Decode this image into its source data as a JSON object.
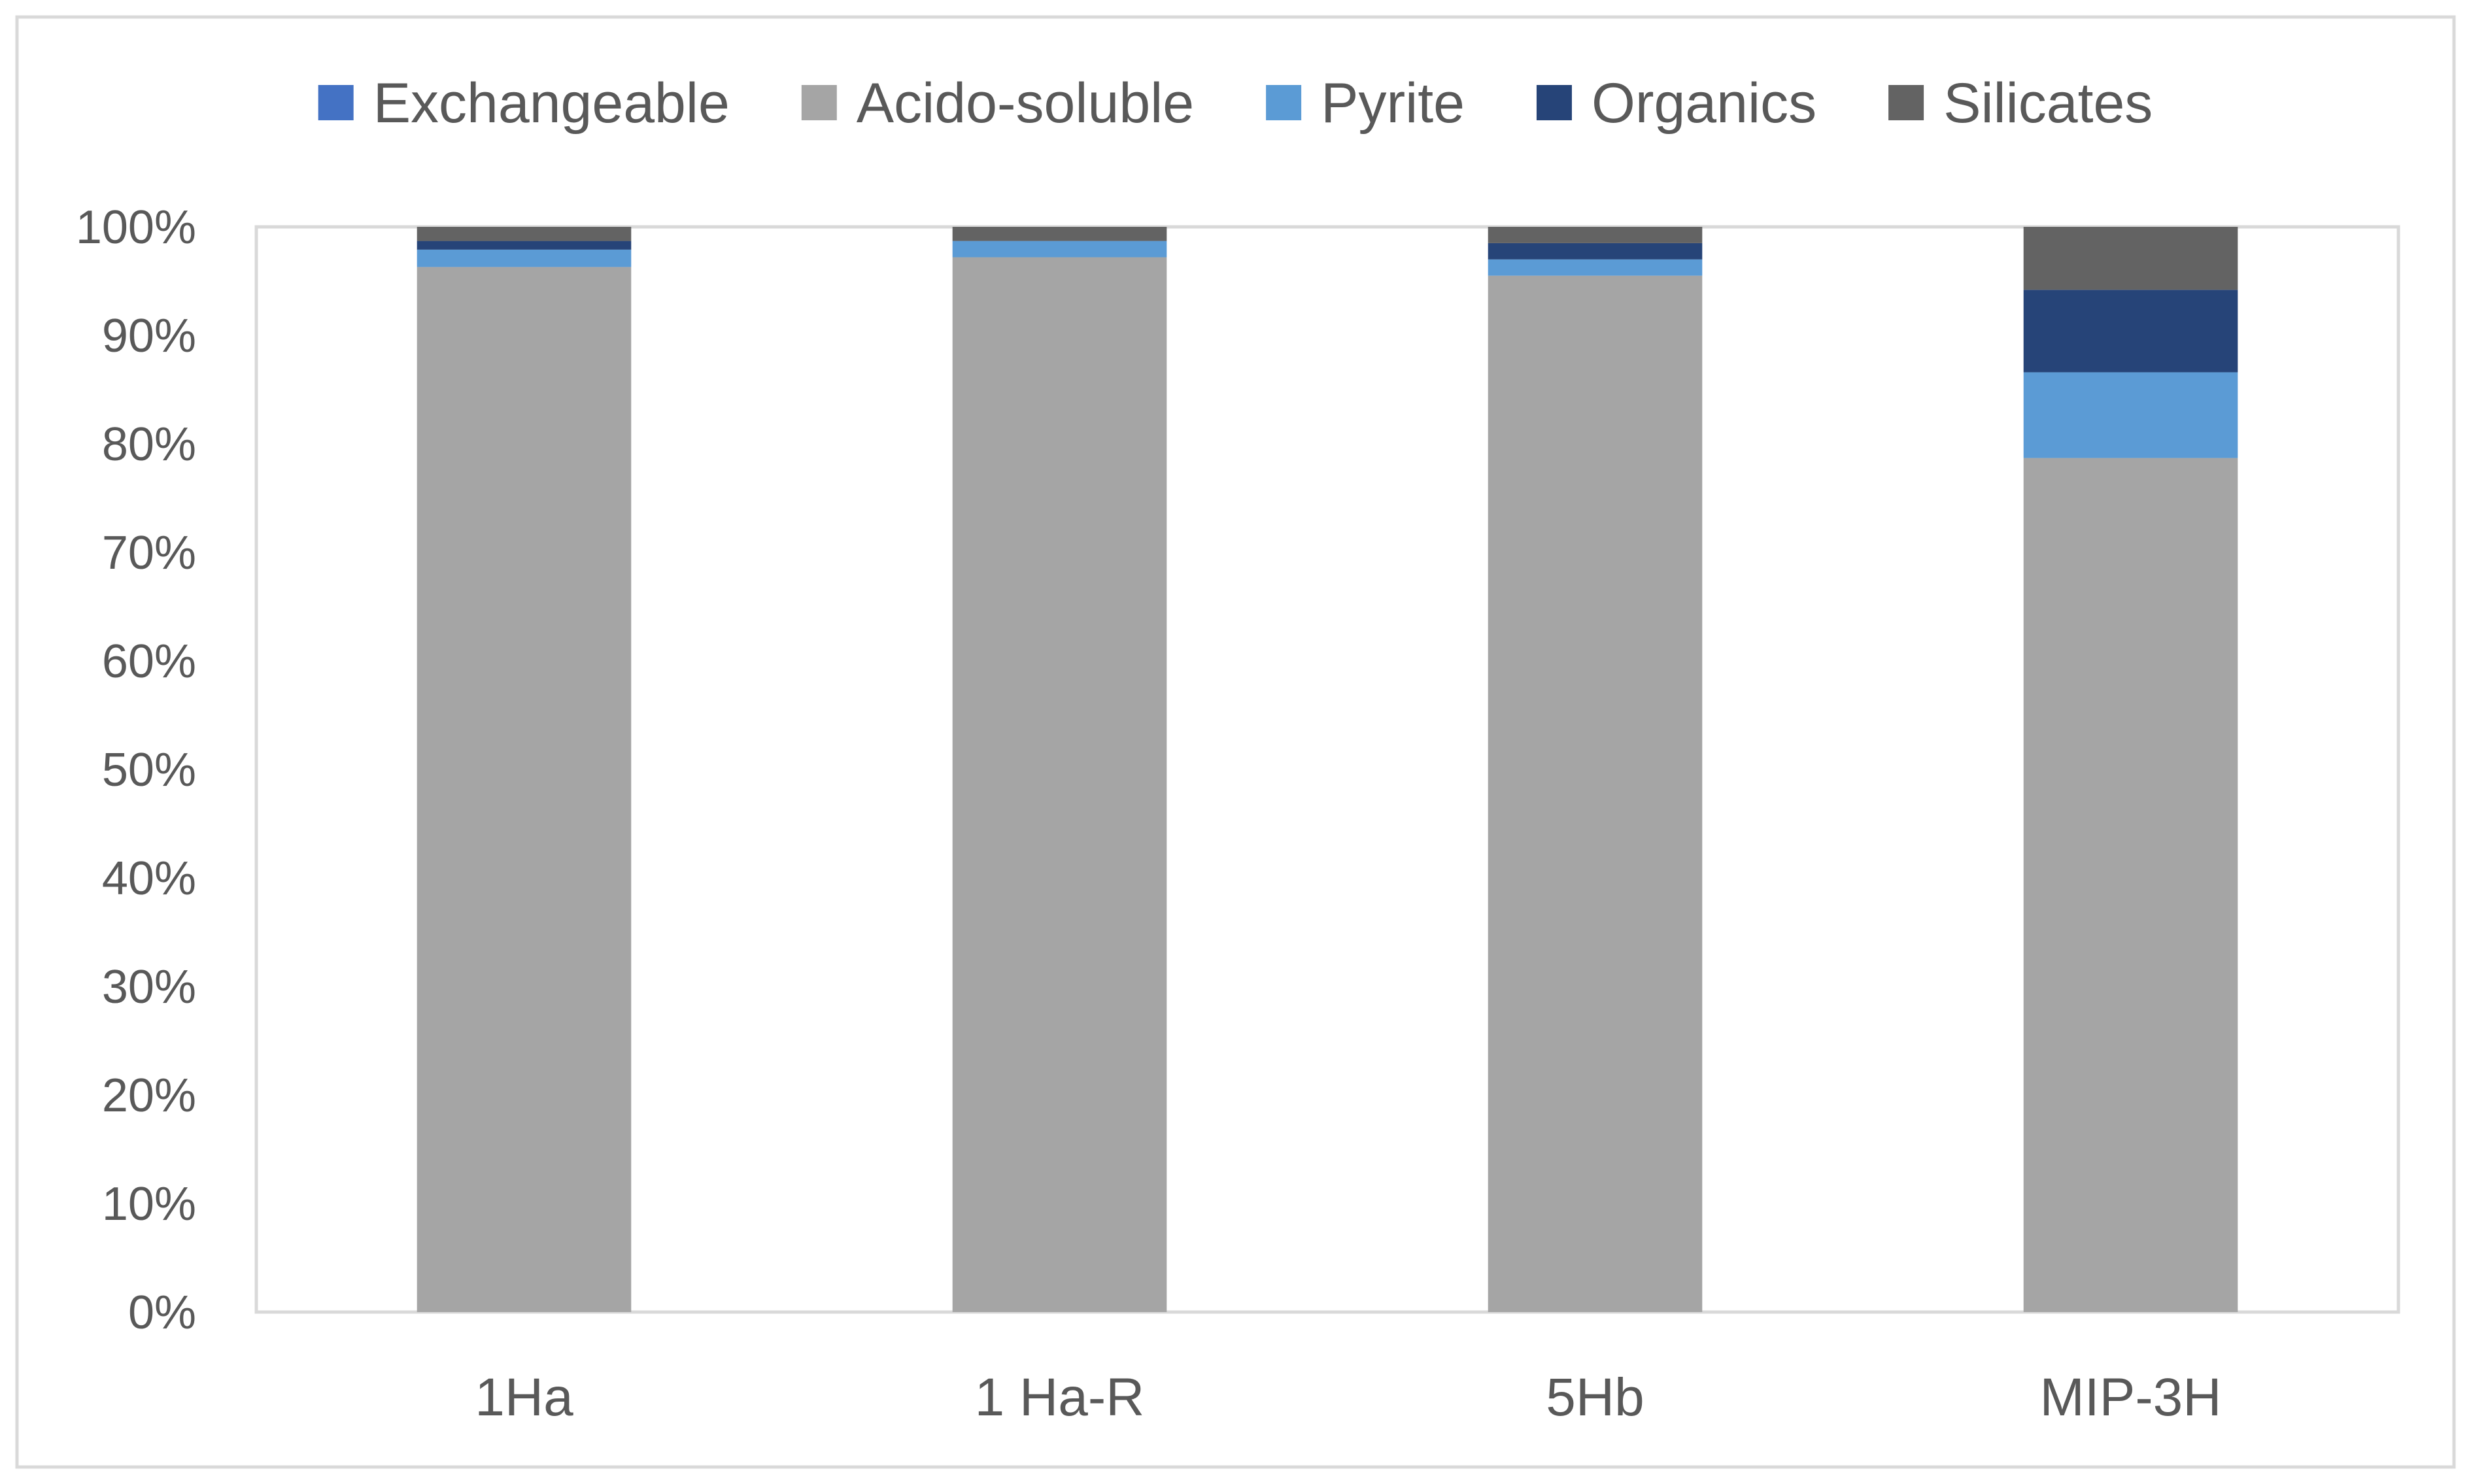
{
  "chart_data": {
    "type": "bar",
    "stacked": true,
    "percent_stacked": true,
    "categories": [
      "1Ha",
      "1 Ha-R",
      "5Hb",
      "MIP-3H"
    ],
    "series": [
      {
        "name": "Exchangeable",
        "color": "#4472C4",
        "values": [
          0.0,
          0.0,
          0.0,
          0.0
        ]
      },
      {
        "name": "Acido-soluble",
        "color": "#A5A5A5",
        "values": [
          96.3,
          97.2,
          95.5,
          78.7
        ]
      },
      {
        "name": "Pyrite",
        "color": "#5B9BD5",
        "values": [
          1.6,
          1.5,
          1.5,
          7.9
        ]
      },
      {
        "name": "Organics",
        "color": "#264478",
        "values": [
          0.8,
          0.0,
          1.5,
          7.6
        ]
      },
      {
        "name": "Silicates",
        "color": "#636363",
        "values": [
          1.3,
          1.3,
          1.5,
          5.8
        ]
      }
    ],
    "y_ticks": [
      "0%",
      "10%",
      "20%",
      "30%",
      "40%",
      "50%",
      "60%",
      "70%",
      "80%",
      "90%",
      "100%"
    ],
    "ylim": [
      0,
      100
    ],
    "legend_position": "top",
    "grid": false
  }
}
